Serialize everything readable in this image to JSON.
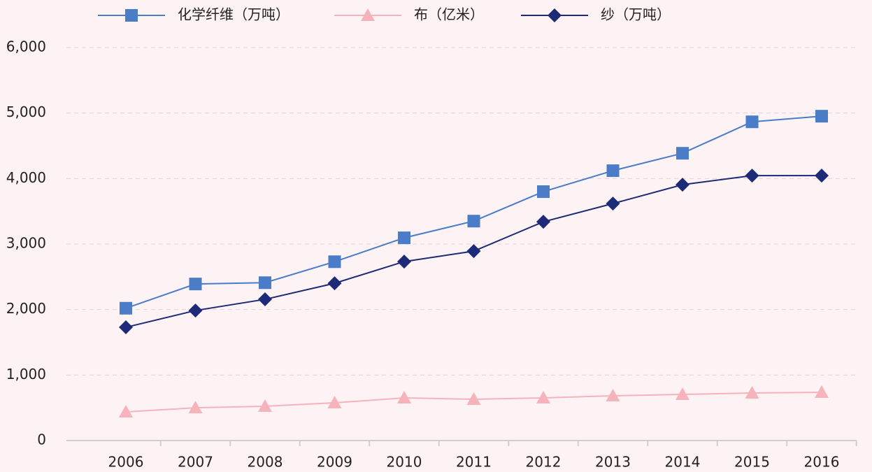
{
  "chart_data": {
    "type": "line",
    "categories": [
      "2006",
      "2007",
      "2008",
      "2009",
      "2010",
      "2011",
      "2012",
      "2013",
      "2014",
      "2015",
      "2016"
    ],
    "series": [
      {
        "name": "化学纤维（万吨）",
        "color": "#4a7cc8",
        "marker": "square",
        "values": [
          2020,
          2390,
          2410,
          2730,
          3095,
          3350,
          3800,
          4120,
          4386,
          4866,
          4952
        ]
      },
      {
        "name": "布（亿米）",
        "color": "#f7b3bb",
        "marker": "triangle",
        "values": [
          438,
          500,
          523,
          576,
          651,
          630,
          651,
          683,
          704,
          726,
          736
        ]
      },
      {
        "name": "纱（万吨）",
        "color": "#1c2a78",
        "marker": "diamond",
        "values": [
          1729,
          1985,
          2156,
          2401,
          2732,
          2892,
          3340,
          3618,
          3906,
          4045,
          4045
        ]
      }
    ],
    "ylim": [
      0,
      6000
    ],
    "yticks": [
      0,
      {
        "value": 1000,
        "label": "1,000"
      },
      {
        "value": 2000,
        "label": "2,000"
      },
      {
        "value": 3000,
        "label": "3,000"
      },
      {
        "value": 4000,
        "label": "4,000"
      },
      {
        "value": 5000,
        "label": "5,000"
      },
      {
        "value": 6000,
        "label": "6,000"
      }
    ],
    "grid": true,
    "legend": "top"
  }
}
